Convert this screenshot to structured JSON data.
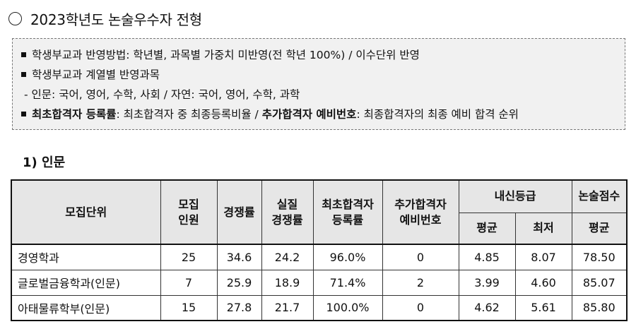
{
  "title": {
    "text": "2023학년도 논술우수자 전형"
  },
  "info": {
    "line1": "학생부교과 반영방법: 학년별, 과목별 가중치 미반영(전 학년 100%) / 이수단위 반영",
    "line2": "학생부교과 계열별 반영과목",
    "line3": "- 인문: 국어, 영어, 수학, 사회 / 자연: 국어, 영어, 수학, 과학",
    "line4_b1": "최초합격자 등록률",
    "line4_t1": ": 최초합격자 중 최종등록비율 / ",
    "line4_b2": "추가합격자 예비번호",
    "line4_t2": ": 최종합격자의 최종 예비 합격 순위"
  },
  "section": {
    "title": "1) 인문"
  },
  "table": {
    "headers": {
      "unit": "모집단위",
      "quota": "모집\n인원",
      "competition": "경쟁률",
      "real_competition": "실질\n경쟁률",
      "first_reg": "최초합격자\n등록률",
      "waitlist": "추가합격자\n예비번호",
      "grade": "내신등급",
      "grade_avg": "평균",
      "grade_min": "최저",
      "essay": "논술점수",
      "essay_avg": "평균"
    },
    "rows": [
      {
        "name": "경영학과",
        "quota": "25",
        "comp": "34.6",
        "real": "24.2",
        "reg": "96.0%",
        "wait": "0",
        "avg": "4.85",
        "min": "8.07",
        "essay": "78.50"
      },
      {
        "name": "글로벌금융학과(인문)",
        "quota": "7",
        "comp": "25.9",
        "real": "18.9",
        "reg": "71.4%",
        "wait": "2",
        "avg": "3.99",
        "min": "4.60",
        "essay": "85.07"
      },
      {
        "name": "아태물류학부(인문)",
        "quota": "15",
        "comp": "27.8",
        "real": "21.7",
        "reg": "100.0%",
        "wait": "0",
        "avg": "4.62",
        "min": "5.61",
        "essay": "85.80"
      }
    ]
  }
}
